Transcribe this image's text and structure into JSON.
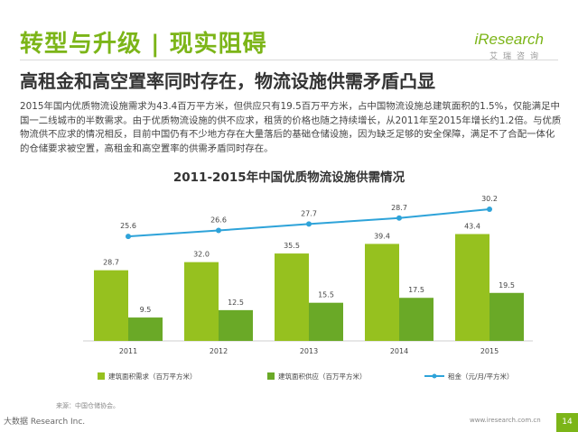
{
  "slide": {
    "title": "转型与升级 | 现实阻碍",
    "subtitle": "高租金和高空置率同时存在，物流设施供需矛盾凸显",
    "body": "2015年国内优质物流设施需求为43.4百万平方米，但供应只有19.5百万平方米，占中国物流设施总建筑面积的1.5%，仅能满足中国一二线城市的半数需求。由于优质物流设施的供不应求，租赁的价格也随之持续增长，从2011年至2015年增长约1.2倍。与优质物流供不应求的情况相反，目前中国仍有不少地方存在大量落后的基础仓储设施，因为缺乏足够的安全保障，满足不了合配一体化的仓储要求被空置，高租金和高空置率的供需矛盾同时存在。",
    "page_number": "14"
  },
  "logo": {
    "main": "iResearch",
    "sub": "艾瑞咨询"
  },
  "footer": {
    "source": "来源：中国仓储协会。",
    "left": "大数据 Research Inc.",
    "url": "www.iresearch.com.cn"
  },
  "colors": {
    "accent": "#7cb518",
    "bar_demand": "#96c11f",
    "bar_supply": "#6aa927",
    "line": "#2ea3d9"
  },
  "chart_data": {
    "type": "bar",
    "title": "2011-2015年中国优质物流设施供需情况",
    "categories": [
      "2011",
      "2012",
      "2013",
      "2014",
      "2015"
    ],
    "series": [
      {
        "name": "建筑面积需求（百万平方米）",
        "type": "bar",
        "values": [
          28.7,
          32.0,
          35.5,
          39.4,
          43.4
        ],
        "labels": [
          "28.7",
          "32.0",
          "35.5",
          "39.4",
          "43.4"
        ]
      },
      {
        "name": "建筑面积供应（百万平方米）",
        "type": "bar",
        "values": [
          9.5,
          12.5,
          15.5,
          17.5,
          19.5
        ],
        "labels": [
          "9.5",
          "12.5",
          "15.5",
          "17.5",
          "19.5"
        ]
      },
      {
        "name": "租金（元/月/平方米）",
        "type": "line",
        "values": [
          25.6,
          26.6,
          27.7,
          28.7,
          30.2
        ],
        "labels": [
          "25.6",
          "26.6",
          "27.7",
          "28.7",
          "30.2"
        ]
      }
    ],
    "legend_position": "bottom",
    "grid": false
  }
}
